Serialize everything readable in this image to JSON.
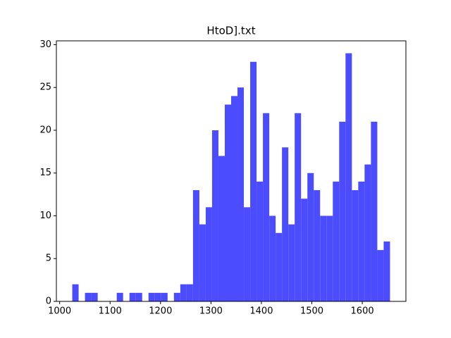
{
  "chart_data": {
    "type": "histogram",
    "title": "HtoD].txt",
    "bins": [
      1025,
      1037.6,
      1050.2,
      1062.8,
      1075.4,
      1088,
      1100.6,
      1113.2,
      1125.8,
      1138.4,
      1151,
      1163.6,
      1176.2,
      1188.8,
      1201.4,
      1214,
      1226.6,
      1239.2,
      1251.8,
      1264.4,
      1277,
      1289.6,
      1302.2,
      1314.8,
      1327.4,
      1340,
      1352.6,
      1365.2,
      1377.8,
      1390.4,
      1403,
      1415.6,
      1428.2,
      1440.8,
      1453.4,
      1466,
      1478.6,
      1491.2,
      1503.8,
      1516.4,
      1529,
      1541.6,
      1554.2,
      1566.8,
      1579.4,
      1592,
      1604.6,
      1617.2,
      1629.8,
      1642.4,
      1655
    ],
    "values": [
      2,
      0,
      1,
      1,
      0,
      0,
      0,
      1,
      0,
      1,
      1,
      0,
      1,
      1,
      1,
      0,
      1,
      2,
      2,
      13,
      9,
      11,
      20,
      17,
      23,
      24,
      25,
      11,
      28,
      14,
      22,
      10,
      8,
      18,
      9,
      22,
      12,
      15,
      13,
      10,
      10,
      14,
      21,
      29,
      13,
      14,
      16,
      21,
      6,
      7
    ],
    "color": "#4c4cff",
    "xlim": [
      993.5,
      1686.5
    ],
    "xticks": [
      1000,
      1100,
      1200,
      1300,
      1400,
      1500,
      1600
    ],
    "ylim": [
      0,
      30.45
    ],
    "yticks": [
      0,
      5,
      10,
      15,
      20,
      25,
      30
    ]
  }
}
